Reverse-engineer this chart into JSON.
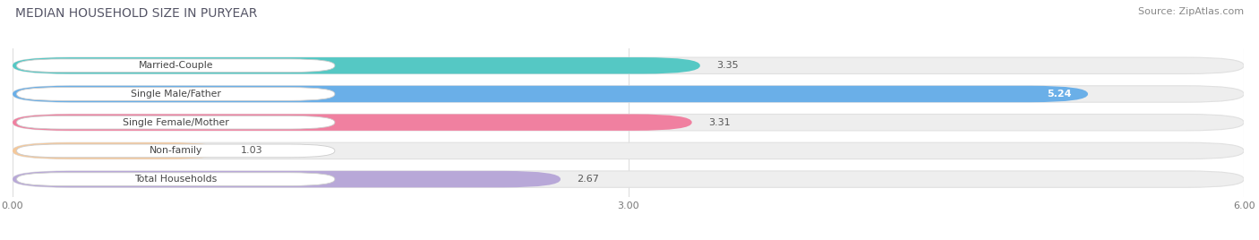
{
  "title": "MEDIAN HOUSEHOLD SIZE IN PURYEAR",
  "source": "Source: ZipAtlas.com",
  "categories": [
    "Married-Couple",
    "Single Male/Father",
    "Single Female/Mother",
    "Non-family",
    "Total Households"
  ],
  "values": [
    3.35,
    5.24,
    3.31,
    1.03,
    2.67
  ],
  "bar_colors": [
    "#55c8c4",
    "#6aafe8",
    "#f080a0",
    "#f5c89a",
    "#b8a8d8"
  ],
  "value_inside": [
    false,
    true,
    false,
    false,
    false
  ],
  "xlim": [
    0,
    6.0
  ],
  "xticks": [
    0.0,
    3.0,
    6.0
  ],
  "xticklabels": [
    "0.00",
    "3.00",
    "6.00"
  ],
  "background_color": "#ffffff",
  "bar_bg_color": "#eeeeee",
  "bar_bg_border": "#e0e0e0",
  "title_fontsize": 10,
  "source_fontsize": 8,
  "bar_height": 0.58,
  "figsize": [
    14.06,
    2.68
  ]
}
